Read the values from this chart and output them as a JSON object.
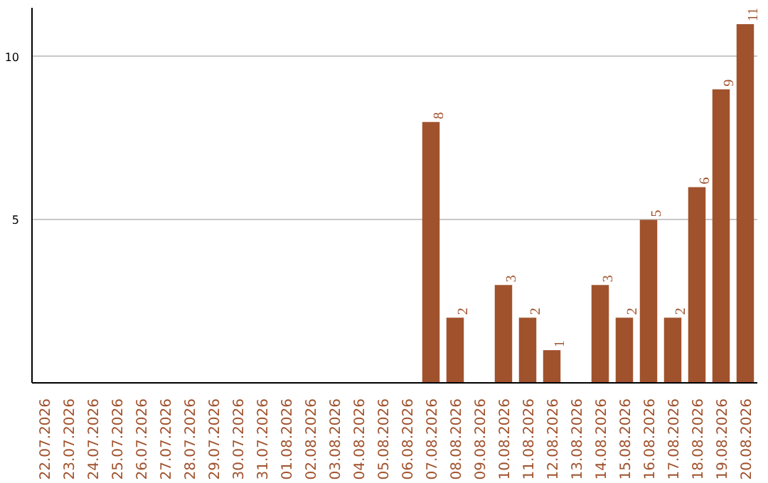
{
  "chart_data": {
    "type": "bar",
    "categories": [
      "22.07.2026",
      "23.07.2026",
      "24.07.2026",
      "25.07.2026",
      "26.07.2026",
      "27.07.2026",
      "28.07.2026",
      "29.07.2026",
      "30.07.2026",
      "31.07.2026",
      "01.08.2026",
      "02.08.2026",
      "03.08.2026",
      "04.08.2026",
      "05.08.2026",
      "06.08.2026",
      "07.08.2026",
      "08.08.2026",
      "09.08.2026",
      "10.08.2026",
      "11.08.2026",
      "12.08.2026",
      "13.08.2026",
      "14.08.2026",
      "15.08.2026",
      "16.08.2026",
      "17.08.2026",
      "18.08.2026",
      "19.08.2026",
      "20.08.2026"
    ],
    "values": [
      0,
      0,
      0,
      0,
      0,
      0,
      0,
      0,
      0,
      0,
      0,
      0,
      0,
      0,
      0,
      0,
      8,
      2,
      0,
      3,
      2,
      1,
      0,
      3,
      2,
      5,
      2,
      6,
      9,
      11
    ],
    "value_labels": [
      null,
      null,
      null,
      null,
      null,
      null,
      null,
      null,
      null,
      null,
      null,
      null,
      null,
      null,
      null,
      null,
      "8",
      "2",
      null,
      "3",
      "2",
      "1",
      null,
      "3",
      "2",
      "5",
      "2",
      "6",
      "9",
      "11"
    ],
    "color": "#a0522d",
    "ylim": [
      0,
      11.5
    ],
    "yticks": [
      5,
      10
    ],
    "grid": "y"
  }
}
